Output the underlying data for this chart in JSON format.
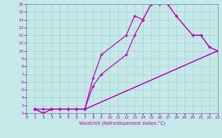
{
  "xlabel": "Windchill (Refroidissement éolien,°C)",
  "bg_color": "#c5e8e8",
  "line_color": "#bb00bb",
  "grid_color": "#a8d0d0",
  "xlim": [
    0,
    23
  ],
  "ylim": [
    2,
    16
  ],
  "xticks": [
    0,
    1,
    2,
    3,
    4,
    5,
    6,
    7,
    8,
    9,
    10,
    11,
    12,
    13,
    14,
    15,
    16,
    17,
    18,
    19,
    20,
    21,
    22,
    23
  ],
  "yticks": [
    2,
    3,
    4,
    5,
    6,
    7,
    8,
    9,
    10,
    11,
    12,
    13,
    14,
    15,
    16
  ],
  "curve1_x": [
    1,
    2,
    3,
    4,
    5,
    6,
    7,
    8,
    9,
    12,
    13,
    14,
    15,
    16,
    17,
    18,
    20,
    21,
    22,
    23
  ],
  "curve1_y": [
    2.5,
    2.0,
    2.5,
    2.5,
    2.5,
    2.5,
    2.5,
    6.5,
    9.5,
    12.0,
    14.5,
    14.0,
    16.0,
    16.0,
    16.0,
    14.5,
    12.0,
    12.0,
    10.5,
    10.0
  ],
  "curve2_x": [
    1,
    2,
    3,
    4,
    5,
    6,
    7,
    8,
    9,
    12,
    13,
    14,
    15,
    16,
    17,
    18,
    20,
    21,
    22,
    23
  ],
  "curve2_y": [
    2.5,
    2.0,
    2.5,
    2.5,
    2.5,
    2.5,
    2.5,
    5.5,
    7.0,
    9.5,
    12.0,
    14.0,
    16.0,
    16.0,
    16.0,
    14.5,
    12.0,
    12.0,
    10.5,
    10.0
  ],
  "curve3_x": [
    1,
    2,
    3,
    4,
    5,
    6,
    7,
    23
  ],
  "curve3_y": [
    2.5,
    2.5,
    2.5,
    2.5,
    2.5,
    2.5,
    2.5,
    10.0
  ],
  "curve4_x": [
    1,
    2,
    3,
    4,
    5,
    6,
    7,
    23
  ],
  "curve4_y": [
    2.5,
    2.5,
    2.5,
    2.5,
    2.5,
    2.5,
    2.5,
    10.0
  ]
}
